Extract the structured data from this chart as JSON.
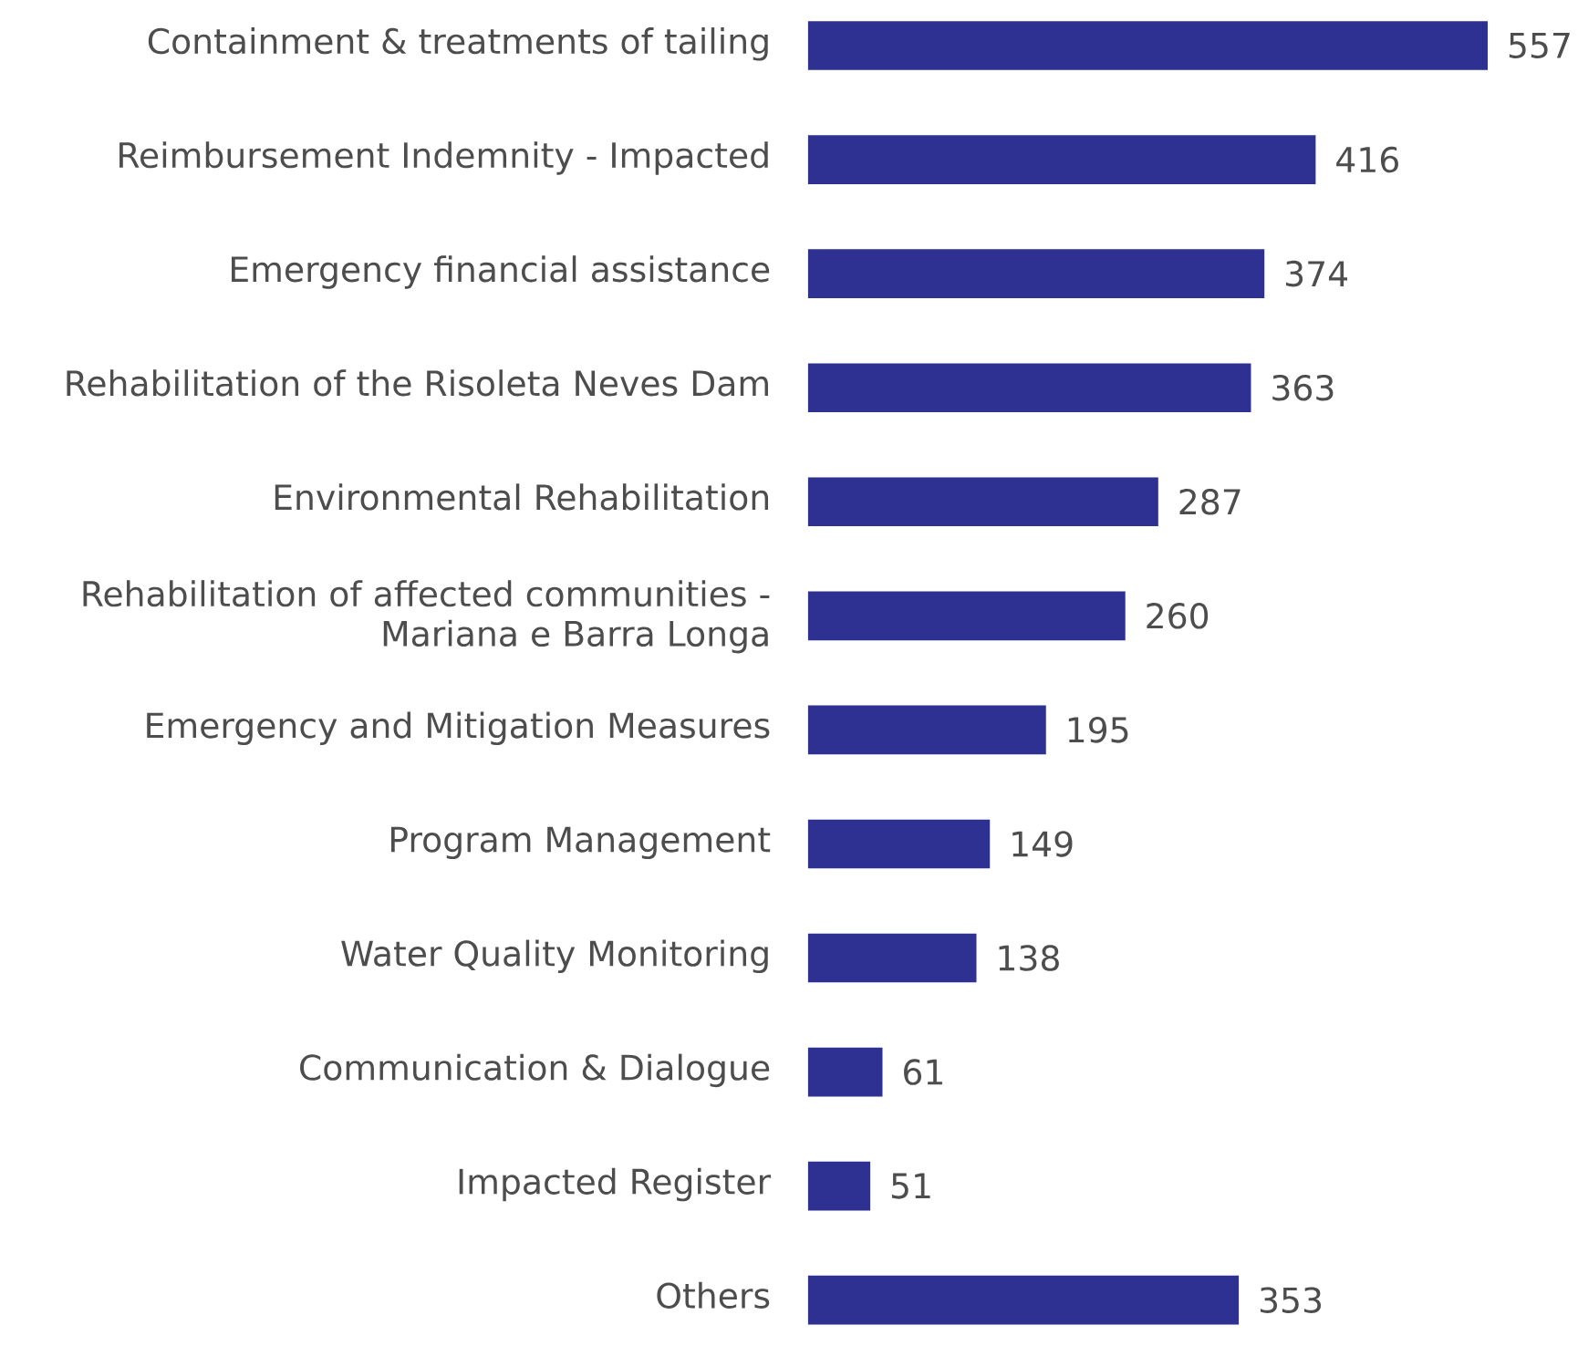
{
  "chart_data": {
    "type": "bar",
    "orientation": "horizontal",
    "data_labels": true,
    "color": "#2e3192",
    "categories": [
      "Containment & treatments of tailing",
      "Reimbursement Indemnity - Impacted",
      "Emergency financial assistance",
      "Rehabilitation of the Risoleta Neves Dam",
      "Environmental Rehabilitation",
      "Rehabilitation of affected communities - Mariana e Barra Longa",
      "Emergency and Mitigation Measures",
      "Program Management",
      "Water Quality Monitoring",
      "Communication & Dialogue",
      "Impacted Register",
      "Others"
    ],
    "values": [
      557,
      416,
      374,
      363,
      287,
      260,
      195,
      149,
      138,
      61,
      51,
      353
    ]
  }
}
